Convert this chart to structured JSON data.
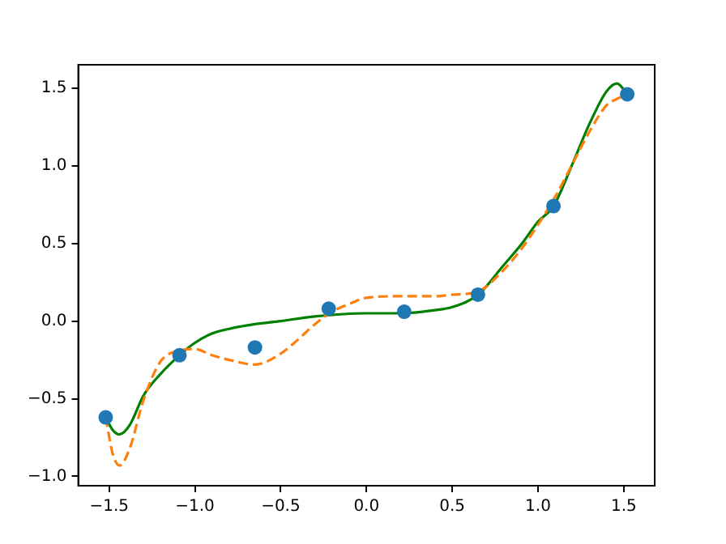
{
  "chart_data": {
    "type": "scatter",
    "xlim": [
      -1.68,
      1.68
    ],
    "ylim": [
      -1.06,
      1.65
    ],
    "xticks": [
      {
        "value": -1.5,
        "label": "−1.5"
      },
      {
        "value": -1.0,
        "label": "−1.0"
      },
      {
        "value": -0.5,
        "label": "−0.5"
      },
      {
        "value": 0.0,
        "label": "0.0"
      },
      {
        "value": 0.5,
        "label": "0.5"
      },
      {
        "value": 1.0,
        "label": "1.0"
      },
      {
        "value": 1.5,
        "label": "1.5"
      }
    ],
    "yticks": [
      {
        "value": -1.0,
        "label": "−1.0"
      },
      {
        "value": -0.5,
        "label": "−0.5"
      },
      {
        "value": 0.0,
        "label": "0.0"
      },
      {
        "value": 0.5,
        "label": "0.5"
      },
      {
        "value": 1.0,
        "label": "1.0"
      },
      {
        "value": 1.5,
        "label": "1.5"
      }
    ],
    "grid": false,
    "legend": false,
    "series": [
      {
        "marker": "circle",
        "color": "#1f77b4",
        "x": [
          -1.52,
          -1.09,
          -0.65,
          -0.22,
          0.22,
          0.65,
          1.09,
          1.52
        ],
        "values": [
          -0.62,
          -0.22,
          -0.17,
          0.08,
          0.06,
          0.17,
          0.74,
          1.46
        ]
      },
      {
        "type": "line",
        "marker": "none",
        "line_style": "dashed",
        "color": "#ff7f0e",
        "x": [
          -1.52,
          -1.48,
          -1.44,
          -1.38,
          -1.3,
          -1.2,
          -1.09,
          -1.0,
          -0.9,
          -0.8,
          -0.65,
          -0.5,
          -0.4,
          -0.3,
          -0.2,
          -0.1,
          0.0,
          0.2,
          0.4,
          0.5,
          0.65,
          0.8,
          0.9,
          1.0,
          1.1,
          1.2,
          1.3,
          1.4,
          1.46,
          1.52
        ],
        "values": [
          -0.62,
          -0.85,
          -0.93,
          -0.82,
          -0.51,
          -0.26,
          -0.19,
          -0.18,
          -0.22,
          -0.25,
          -0.28,
          -0.21,
          -0.12,
          -0.02,
          0.06,
          0.11,
          0.15,
          0.16,
          0.16,
          0.17,
          0.19,
          0.33,
          0.46,
          0.62,
          0.8,
          1.01,
          1.22,
          1.39,
          1.43,
          1.46
        ]
      },
      {
        "type": "line",
        "marker": "none",
        "line_style": "solid",
        "color": "#008000",
        "x": [
          -1.52,
          -1.48,
          -1.44,
          -1.38,
          -1.3,
          -1.2,
          -1.09,
          -1.0,
          -0.9,
          -0.8,
          -0.65,
          -0.5,
          -0.3,
          0.0,
          0.2,
          0.4,
          0.5,
          0.65,
          0.8,
          0.9,
          1.0,
          1.09,
          1.2,
          1.3,
          1.4,
          1.46,
          1.52
        ],
        "values": [
          -0.62,
          -0.7,
          -0.73,
          -0.67,
          -0.48,
          -0.34,
          -0.22,
          -0.14,
          -0.08,
          -0.05,
          -0.02,
          0.0,
          0.03,
          0.05,
          0.05,
          0.07,
          0.09,
          0.17,
          0.36,
          0.49,
          0.64,
          0.74,
          1.01,
          1.27,
          1.48,
          1.53,
          1.46
        ]
      }
    ]
  }
}
